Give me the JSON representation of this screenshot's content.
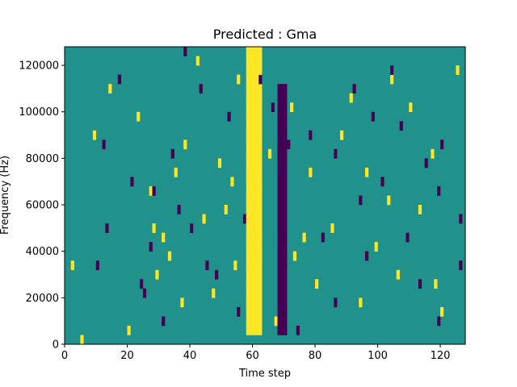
{
  "chart_data": {
    "type": "heatmap",
    "title": "Predicted : Gma",
    "xlabel": "Time step",
    "ylabel": "Frequency (Hz)",
    "xlim": [
      0,
      128
    ],
    "ylim": [
      0,
      128000
    ],
    "x_ticks": [
      0,
      20,
      40,
      60,
      80,
      100,
      120
    ],
    "y_ticks": [
      0,
      20000,
      40000,
      60000,
      80000,
      100000,
      120000
    ],
    "y_tick_labels": [
      "0",
      "20000",
      "40000",
      "60000",
      "80000",
      "100000",
      "120000"
    ],
    "grid": false,
    "legend": "none",
    "n_time_steps": 128,
    "n_freq_bins": 32,
    "colors": {
      "background": "#21918c",
      "high": "#fde725",
      "low": "#440154"
    },
    "values_meaning": "1 = high (yellow), -1 = low (purple), 0 = background (teal)",
    "high_band": {
      "time_steps": [
        58,
        62
      ],
      "freq_range": [
        4000,
        128000
      ]
    },
    "low_band": {
      "time_steps": [
        68,
        70
      ],
      "freq_range": [
        4000,
        112000
      ]
    },
    "high_cells": [
      [
        5,
        0
      ],
      [
        28,
        12
      ],
      [
        42,
        30
      ],
      [
        55,
        28
      ],
      [
        65,
        20
      ],
      [
        72,
        25
      ],
      [
        91,
        26
      ],
      [
        99,
        10
      ],
      [
        104,
        28
      ],
      [
        2,
        8
      ],
      [
        20,
        1
      ],
      [
        35,
        18
      ],
      [
        47,
        5
      ],
      [
        51,
        14
      ],
      [
        73,
        9
      ],
      [
        80,
        6
      ],
      [
        94,
        4
      ],
      [
        110,
        25
      ],
      [
        120,
        3
      ],
      [
        14,
        27
      ],
      [
        27,
        16
      ],
      [
        29,
        7
      ],
      [
        31,
        11
      ],
      [
        38,
        21
      ],
      [
        44,
        13
      ],
      [
        53,
        17
      ],
      [
        54,
        8
      ],
      [
        67,
        2
      ],
      [
        85,
        12
      ],
      [
        96,
        18
      ],
      [
        103,
        15
      ],
      [
        113,
        14
      ],
      [
        117,
        20
      ],
      [
        125,
        29
      ],
      [
        9,
        22
      ],
      [
        23,
        24
      ],
      [
        33,
        9
      ],
      [
        37,
        4
      ],
      [
        49,
        19
      ],
      [
        76,
        11
      ],
      [
        78,
        18
      ],
      [
        88,
        22
      ],
      [
        106,
        7
      ],
      [
        118,
        6
      ]
    ],
    "low_cells": [
      [
        38,
        31
      ],
      [
        24,
        6
      ],
      [
        25,
        5
      ],
      [
        40,
        12
      ],
      [
        62,
        28
      ],
      [
        66,
        25
      ],
      [
        78,
        22
      ],
      [
        86,
        20
      ],
      [
        92,
        27
      ],
      [
        107,
        23
      ],
      [
        115,
        19
      ],
      [
        119,
        16
      ],
      [
        126,
        13
      ],
      [
        12,
        21
      ],
      [
        21,
        17
      ],
      [
        27,
        10
      ],
      [
        31,
        2
      ],
      [
        36,
        14
      ],
      [
        45,
        8
      ],
      [
        52,
        24
      ],
      [
        55,
        3
      ],
      [
        74,
        1
      ],
      [
        82,
        11
      ],
      [
        86,
        4
      ],
      [
        94,
        15
      ],
      [
        96,
        9
      ],
      [
        101,
        17
      ],
      [
        109,
        11
      ],
      [
        113,
        6
      ],
      [
        119,
        2
      ],
      [
        126,
        8
      ],
      [
        17,
        28
      ],
      [
        10,
        8
      ],
      [
        13,
        12
      ],
      [
        28,
        16
      ],
      [
        34,
        20
      ],
      [
        43,
        27
      ],
      [
        48,
        7
      ],
      [
        57,
        13
      ],
      [
        71,
        21
      ],
      [
        98,
        24
      ],
      [
        104,
        29
      ],
      [
        120,
        21
      ]
    ]
  }
}
